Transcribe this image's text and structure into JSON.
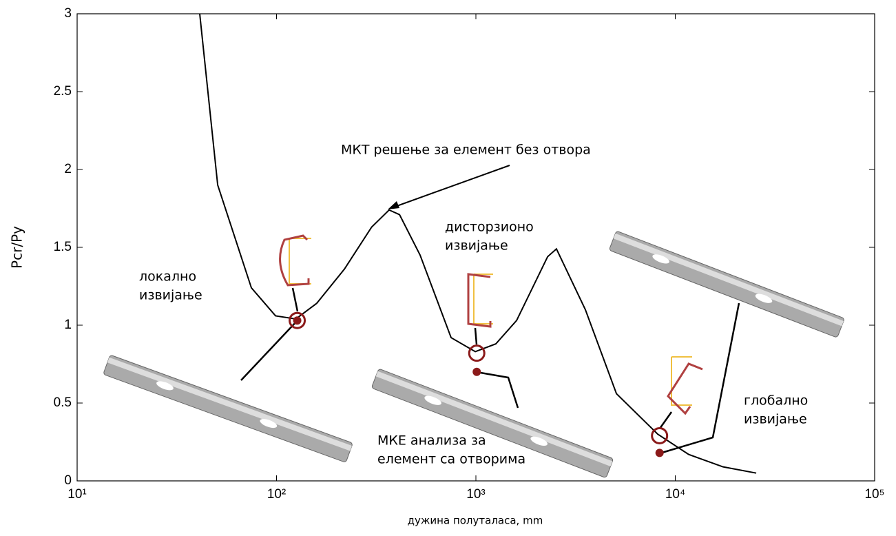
{
  "chart_data": {
    "type": "line",
    "x_label": "дужина полуталаса, mm",
    "y_label": "Pcr/Py",
    "xscale": "log",
    "xlim": [
      10,
      100000
    ],
    "xticks": [
      {
        "value": 10,
        "label": "10¹"
      },
      {
        "value": 100,
        "label": "10²"
      },
      {
        "value": 1000,
        "label": "10³"
      },
      {
        "value": 10000,
        "label": "10⁴"
      },
      {
        "value": 100000,
        "label": "10⁵"
      }
    ],
    "ylim": [
      0,
      3
    ],
    "yticks": [
      0,
      0.5,
      1,
      1.5,
      2,
      2.5,
      3
    ],
    "series": [
      {
        "color": "#000000",
        "x": [
          41.2,
          50.7,
          74.8,
          98.9,
          125,
          159,
          219,
          300,
          367,
          414,
          525,
          751,
          993,
          1259,
          1600,
          2290,
          2535,
          3540,
          5070,
          8170,
          11670,
          17370,
          25470
        ],
        "values": [
          3,
          1.9,
          1.24,
          1.06,
          1.04,
          1.14,
          1.36,
          1.63,
          1.74,
          1.71,
          1.45,
          0.92,
          0.83,
          0.88,
          1.03,
          1.44,
          1.49,
          1.1,
          0.56,
          0.3,
          0.17,
          0.09,
          0.05
        ]
      },
      {
        "type": "scatter",
        "marker": "open-circle",
        "color": "#8b1a1a",
        "x": [
          127,
          1010,
          8340
        ],
        "values": [
          1.03,
          0.82,
          0.29
        ]
      },
      {
        "type": "scatter",
        "marker": "dot",
        "color": "#8b1a1a",
        "x": [
          127,
          1010,
          8340
        ],
        "values": [
          1.03,
          0.7,
          0.18
        ]
      }
    ],
    "annotations": [
      {
        "lines": [
          "МКТ решење за елемент без отвора"
        ]
      },
      {
        "lines": [
          "дисторзионо",
          "извијање"
        ]
      },
      {
        "lines": [
          "локално",
          "извијање"
        ]
      },
      {
        "lines": [
          "глобално",
          "извијање"
        ]
      },
      {
        "lines": [
          "МКЕ анализа за",
          "елемент са отворима"
        ]
      }
    ]
  }
}
